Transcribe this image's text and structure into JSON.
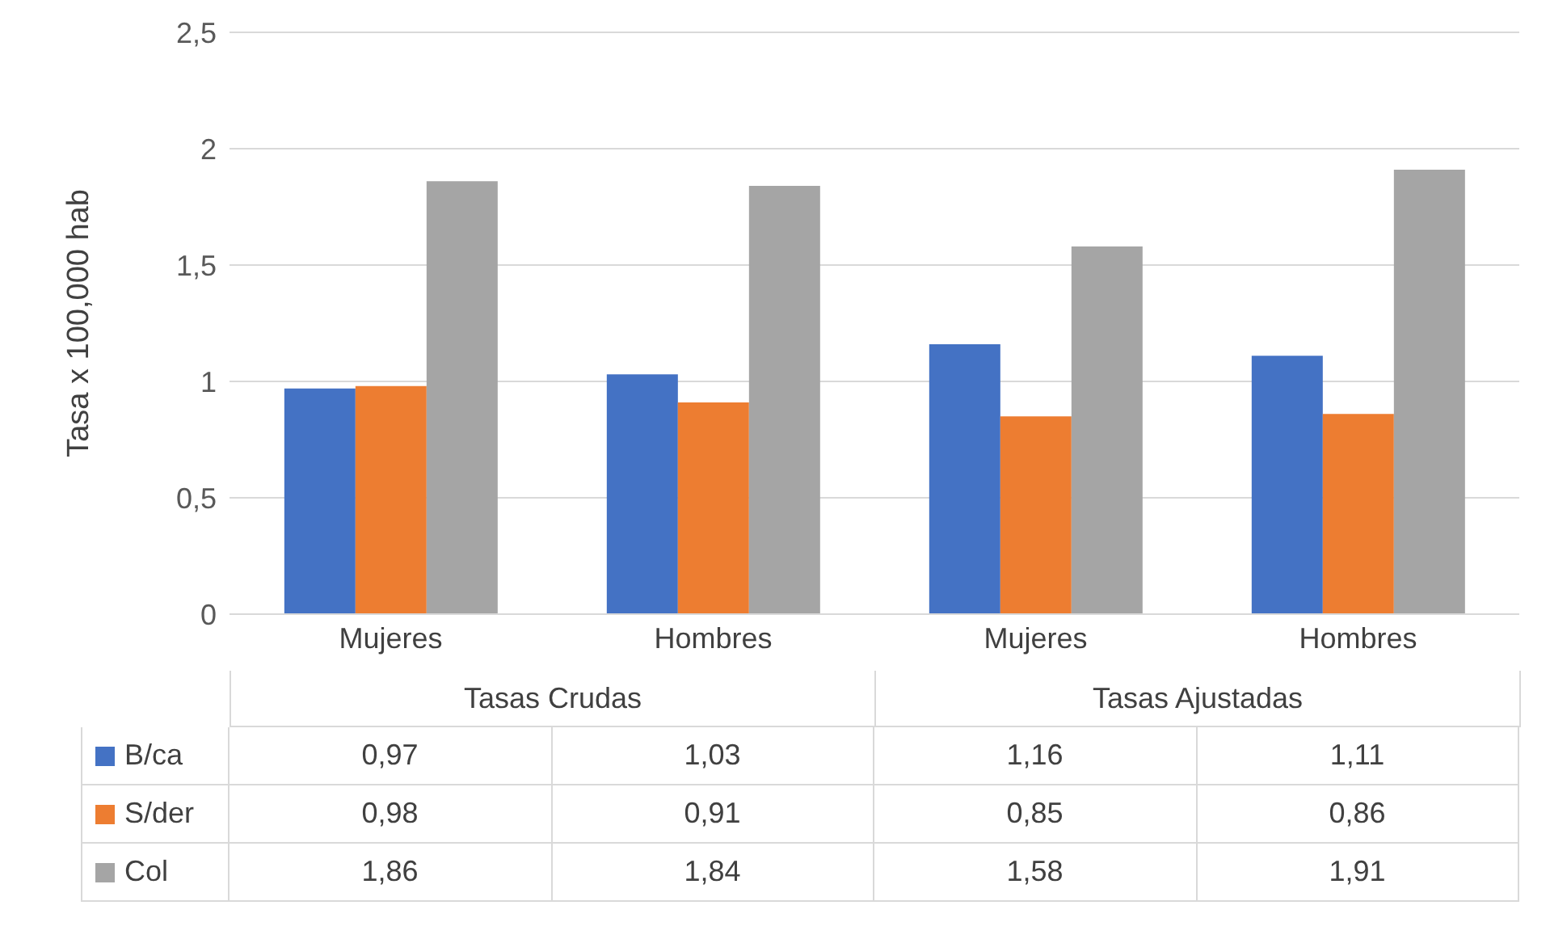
{
  "chart_data": {
    "type": "bar",
    "ylabel": "Tasa x 100,000 hab",
    "categories": [
      "Mujeres",
      "Hombres",
      "Mujeres",
      "Hombres"
    ],
    "annotations": [
      "Tasas Crudas",
      "Tasas Ajustadas"
    ],
    "series": [
      {
        "name": "B/ca",
        "color": "#4472c4",
        "values": [
          0.97,
          1.03,
          1.16,
          1.11
        ],
        "value_labels": [
          "0,97",
          "1,03",
          "1,16",
          "1,11"
        ]
      },
      {
        "name": "S/der",
        "color": "#ed7d31",
        "values": [
          0.98,
          0.91,
          0.85,
          0.86
        ],
        "value_labels": [
          "0,98",
          "0,91",
          "0,85",
          "0,86"
        ]
      },
      {
        "name": "Col",
        "color": "#a5a5a5",
        "values": [
          1.86,
          1.84,
          1.58,
          1.91
        ],
        "value_labels": [
          "1,86",
          "1,84",
          "1,58",
          "1,91"
        ]
      }
    ],
    "ylim": [
      0,
      2.5
    ],
    "yticks": [
      0,
      {
        "value": 0.5,
        "label": "0,5"
      },
      1,
      {
        "value": 1.5,
        "label": "1,5"
      },
      2,
      {
        "value": 2.5,
        "label": "2,5"
      }
    ],
    "grid": "y",
    "legend": "bottom"
  }
}
